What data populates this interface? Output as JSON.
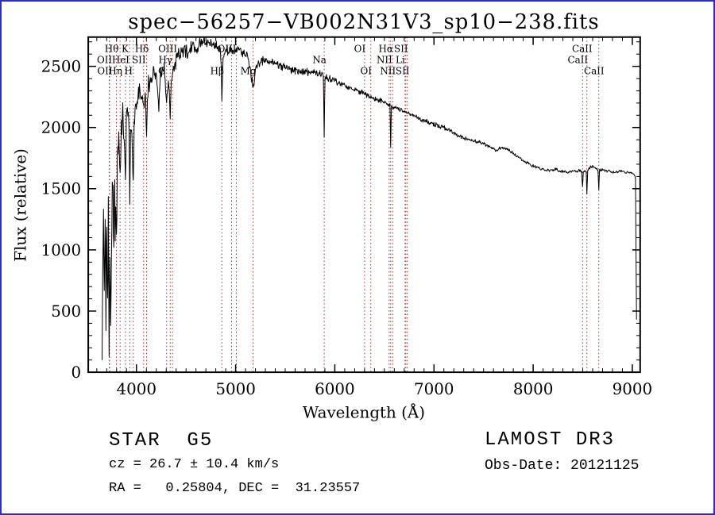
{
  "page": {
    "border_color": "#2b2bd5",
    "background_color": "#ffffff"
  },
  "chart_data": {
    "type": "line",
    "title": "spec−56257−VB002N31V3_sp10−238.fits",
    "xlabel": "Wavelength (Å)",
    "ylabel": "Flux (relative)",
    "xlim": [
      3514,
      9079
    ],
    "ylim": [
      0,
      2739
    ],
    "xticks": [
      4000,
      5000,
      6000,
      7000,
      8000,
      9000
    ],
    "yticks": [
      0,
      500,
      1000,
      1500,
      2000,
      2500
    ],
    "x_minor_step": 100,
    "y_minor_step": 100,
    "grid": false,
    "legend": "none",
    "line_color": "#000000",
    "frame_color": "#000000",
    "spectral_line_color": "#a03030",
    "noise_seed": 20121125,
    "label_rows_y": {
      "1": 64,
      "2": 78,
      "3": 92
    },
    "spectral_lines": [
      {
        "wl": 3726,
        "label": "OII",
        "row": 2
      },
      {
        "wl": 3729,
        "label": "OII",
        "row": 3
      },
      {
        "wl": 3798,
        "label": "Hθ",
        "row": 1
      },
      {
        "wl": 3835,
        "label": "Hη",
        "row": 3
      },
      {
        "wl": 3889,
        "label": "HeI",
        "row": 2
      },
      {
        "wl": 3933,
        "label": "K",
        "row": 1
      },
      {
        "wl": 3968,
        "label": "H",
        "row": 3
      },
      {
        "wl": 4072,
        "label": "SII",
        "row": 2
      },
      {
        "wl": 4102,
        "label": "Hδ",
        "row": 1
      },
      {
        "wl": 4304,
        "label": "G",
        "row": 3
      },
      {
        "wl": 4340,
        "label": "Hγ",
        "row": 2
      },
      {
        "wl": 4363,
        "label": "OIII",
        "row": 1
      },
      {
        "wl": 4861,
        "label": "Hβ",
        "row": 3
      },
      {
        "wl": 4959,
        "label": "OIII",
        "row": 1
      },
      {
        "wl": 5007,
        "label": "",
        "row": 1
      },
      {
        "wl": 5175,
        "label": "Mg",
        "row": 3
      },
      {
        "wl": 5893,
        "label": "Na",
        "row": 2
      },
      {
        "wl": 6300,
        "label": "OI",
        "row": 1
      },
      {
        "wl": 6363,
        "label": "OI",
        "row": 3
      },
      {
        "wl": 6548,
        "label": "NII",
        "row": 2
      },
      {
        "wl": 6563,
        "label": "Hα",
        "row": 1
      },
      {
        "wl": 6583,
        "label": "NII",
        "row": 3
      },
      {
        "wl": 6708,
        "label": "Li",
        "row": 2
      },
      {
        "wl": 6716,
        "label": "SII",
        "row": 1
      },
      {
        "wl": 6731,
        "label": "SII",
        "row": 3
      },
      {
        "wl": 8498,
        "label": "CaII",
        "row": 2
      },
      {
        "wl": 8542,
        "label": "CaII",
        "row": 1
      },
      {
        "wl": 8662,
        "label": "CaII",
        "row": 3
      }
    ],
    "spectrum_points": [
      [
        3653,
        100,
        80
      ],
      [
        3660,
        950,
        280
      ],
      [
        3668,
        1300,
        260
      ],
      [
        3676,
        520,
        240
      ],
      [
        3684,
        1150,
        270
      ],
      [
        3692,
        620,
        260
      ],
      [
        3700,
        1350,
        280
      ],
      [
        3708,
        560,
        240
      ],
      [
        3716,
        1250,
        270
      ],
      [
        3724,
        460,
        220
      ],
      [
        3732,
        1050,
        270
      ],
      [
        3740,
        400,
        180
      ],
      [
        3748,
        1150,
        260
      ],
      [
        3756,
        1400,
        250
      ],
      [
        3764,
        1550,
        240
      ],
      [
        3772,
        950,
        240
      ],
      [
        3781,
        1650,
        220
      ],
      [
        3790,
        1320,
        220
      ],
      [
        3798,
        1120,
        200
      ],
      [
        3807,
        1750,
        190
      ],
      [
        3816,
        1950,
        175
      ],
      [
        3826,
        1820,
        170
      ],
      [
        3835,
        1520,
        180
      ],
      [
        3844,
        1950,
        160
      ],
      [
        3853,
        2050,
        155
      ],
      [
        3862,
        2100,
        150
      ],
      [
        3871,
        1960,
        150
      ],
      [
        3880,
        1860,
        150
      ],
      [
        3889,
        1620,
        150
      ],
      [
        3898,
        2050,
        135
      ],
      [
        3908,
        2100,
        130
      ],
      [
        3918,
        2150,
        125
      ],
      [
        3926,
        2010,
        130
      ],
      [
        3933,
        1360,
        140
      ],
      [
        3941,
        1860,
        130
      ],
      [
        3950,
        1950,
        125
      ],
      [
        3959,
        1810,
        130
      ],
      [
        3968,
        1460,
        140
      ],
      [
        3977,
        1950,
        120
      ],
      [
        3986,
        2100,
        118
      ],
      [
        4000,
        2200,
        115
      ],
      [
        4015,
        2250,
        112
      ],
      [
        4030,
        2300,
        110
      ],
      [
        4045,
        2280,
        108
      ],
      [
        4060,
        2250,
        106
      ],
      [
        4072,
        2160,
        105
      ],
      [
        4088,
        2300,
        102
      ],
      [
        4102,
        1910,
        110
      ],
      [
        4116,
        2320,
        100
      ],
      [
        4135,
        2380,
        96
      ],
      [
        4155,
        2420,
        92
      ],
      [
        4175,
        2450,
        90
      ],
      [
        4200,
        2420,
        90
      ],
      [
        4226,
        2190,
        95
      ],
      [
        4245,
        2430,
        88
      ],
      [
        4265,
        2480,
        86
      ],
      [
        4285,
        2500,
        85
      ],
      [
        4304,
        2230,
        90
      ],
      [
        4322,
        2380,
        86
      ],
      [
        4340,
        2130,
        90
      ],
      [
        4356,
        2400,
        85
      ],
      [
        4375,
        2520,
        82
      ],
      [
        4400,
        2560,
        80
      ],
      [
        4430,
        2590,
        78
      ],
      [
        4460,
        2610,
        75
      ],
      [
        4490,
        2640,
        73
      ],
      [
        4520,
        2610,
        72
      ],
      [
        4550,
        2650,
        70
      ],
      [
        4580,
        2670,
        68
      ],
      [
        4610,
        2650,
        67
      ],
      [
        4640,
        2690,
        65
      ],
      [
        4670,
        2680,
        64
      ],
      [
        4700,
        2700,
        62
      ],
      [
        4730,
        2690,
        61
      ],
      [
        4760,
        2680,
        60
      ],
      [
        4790,
        2665,
        59
      ],
      [
        4820,
        2655,
        58
      ],
      [
        4845,
        2640,
        58
      ],
      [
        4855,
        2500,
        70
      ],
      [
        4861,
        2270,
        80
      ],
      [
        4868,
        2480,
        68
      ],
      [
        4880,
        2600,
        58
      ],
      [
        4910,
        2630,
        56
      ],
      [
        4940,
        2640,
        54
      ],
      [
        4970,
        2630,
        53
      ],
      [
        5000,
        2625,
        52
      ],
      [
        5030,
        2640,
        51
      ],
      [
        5060,
        2620,
        50
      ],
      [
        5090,
        2600,
        49
      ],
      [
        5120,
        2570,
        48
      ],
      [
        5150,
        2480,
        50
      ],
      [
        5167,
        2390,
        52
      ],
      [
        5175,
        2310,
        55
      ],
      [
        5185,
        2350,
        52
      ],
      [
        5200,
        2470,
        48
      ],
      [
        5230,
        2520,
        46
      ],
      [
        5260,
        2540,
        45
      ],
      [
        5290,
        2550,
        44
      ],
      [
        5320,
        2545,
        43
      ],
      [
        5350,
        2535,
        43
      ],
      [
        5380,
        2525,
        42
      ],
      [
        5410,
        2515,
        41
      ],
      [
        5440,
        2510,
        41
      ],
      [
        5470,
        2500,
        40
      ],
      [
        5500,
        2490,
        40
      ],
      [
        5530,
        2480,
        39
      ],
      [
        5560,
        2470,
        39
      ],
      [
        5590,
        2465,
        38
      ],
      [
        5620,
        2460,
        38
      ],
      [
        5650,
        2455,
        37
      ],
      [
        5680,
        2450,
        37
      ],
      [
        5710,
        2450,
        36
      ],
      [
        5740,
        2450,
        36
      ],
      [
        5770,
        2450,
        35
      ],
      [
        5800,
        2450,
        35
      ],
      [
        5830,
        2445,
        34
      ],
      [
        5860,
        2435,
        34
      ],
      [
        5884,
        2425,
        34
      ],
      [
        5893,
        1960,
        45
      ],
      [
        5902,
        2415,
        34
      ],
      [
        5930,
        2405,
        33
      ],
      [
        5960,
        2395,
        33
      ],
      [
        5990,
        2385,
        32
      ],
      [
        6020,
        2370,
        32
      ],
      [
        6050,
        2360,
        31
      ],
      [
        6080,
        2350,
        31
      ],
      [
        6110,
        2340,
        30
      ],
      [
        6140,
        2330,
        30
      ],
      [
        6170,
        2320,
        30
      ],
      [
        6200,
        2310,
        29
      ],
      [
        6230,
        2300,
        29
      ],
      [
        6260,
        2290,
        29
      ],
      [
        6290,
        2275,
        28
      ],
      [
        6320,
        2265,
        28
      ],
      [
        6350,
        2255,
        28
      ],
      [
        6380,
        2245,
        27
      ],
      [
        6410,
        2235,
        27
      ],
      [
        6440,
        2225,
        27
      ],
      [
        6470,
        2215,
        26
      ],
      [
        6500,
        2205,
        26
      ],
      [
        6530,
        2195,
        26
      ],
      [
        6556,
        2185,
        26
      ],
      [
        6563,
        1860,
        35
      ],
      [
        6571,
        2175,
        26
      ],
      [
        6600,
        2165,
        25
      ],
      [
        6630,
        2155,
        25
      ],
      [
        6660,
        2145,
        25
      ],
      [
        6690,
        2135,
        24
      ],
      [
        6720,
        2125,
        24
      ],
      [
        6750,
        2115,
        24
      ],
      [
        6780,
        2105,
        23
      ],
      [
        6810,
        2090,
        23
      ],
      [
        6840,
        2078,
        23
      ],
      [
        6870,
        2068,
        22
      ],
      [
        6900,
        2058,
        22
      ],
      [
        6930,
        2048,
        22
      ],
      [
        6960,
        2038,
        22
      ],
      [
        6990,
        2028,
        21
      ],
      [
        7020,
        2018,
        21
      ],
      [
        7050,
        2010,
        21
      ],
      [
        7080,
        2002,
        21
      ],
      [
        7110,
        1995,
        20
      ],
      [
        7140,
        1985,
        20
      ],
      [
        7170,
        1970,
        20
      ],
      [
        7200,
        1955,
        20
      ],
      [
        7230,
        1940,
        20
      ],
      [
        7260,
        1928,
        19
      ],
      [
        7290,
        1916,
        19
      ],
      [
        7320,
        1906,
        19
      ],
      [
        7350,
        1900,
        19
      ],
      [
        7380,
        1895,
        19
      ],
      [
        7410,
        1890,
        18
      ],
      [
        7440,
        1885,
        18
      ],
      [
        7470,
        1878,
        18
      ],
      [
        7500,
        1870,
        18
      ],
      [
        7530,
        1858,
        18
      ],
      [
        7560,
        1845,
        18
      ],
      [
        7590,
        1826,
        18
      ],
      [
        7620,
        1815,
        18
      ],
      [
        7650,
        1825,
        17
      ],
      [
        7680,
        1835,
        17
      ],
      [
        7710,
        1840,
        17
      ],
      [
        7740,
        1825,
        17
      ],
      [
        7770,
        1808,
        17
      ],
      [
        7800,
        1790,
        17
      ],
      [
        7830,
        1770,
        17
      ],
      [
        7860,
        1752,
        17
      ],
      [
        7890,
        1735,
        16
      ],
      [
        7920,
        1720,
        16
      ],
      [
        7950,
        1708,
        16
      ],
      [
        7980,
        1695,
        16
      ],
      [
        8010,
        1685,
        16
      ],
      [
        8040,
        1672,
        16
      ],
      [
        8070,
        1662,
        16
      ],
      [
        8100,
        1658,
        16
      ],
      [
        8130,
        1652,
        15
      ],
      [
        8160,
        1648,
        15
      ],
      [
        8190,
        1655,
        15
      ],
      [
        8220,
        1658,
        15
      ],
      [
        8250,
        1650,
        15
      ],
      [
        8280,
        1642,
        15
      ],
      [
        8310,
        1636,
        15
      ],
      [
        8340,
        1630,
        15
      ],
      [
        8370,
        1635,
        15
      ],
      [
        8400,
        1640,
        15
      ],
      [
        8430,
        1645,
        14
      ],
      [
        8460,
        1648,
        14
      ],
      [
        8490,
        1640,
        14
      ],
      [
        8498,
        1505,
        18
      ],
      [
        8506,
        1640,
        14
      ],
      [
        8520,
        1645,
        14
      ],
      [
        8535,
        1642,
        14
      ],
      [
        8542,
        1458,
        18
      ],
      [
        8550,
        1648,
        14
      ],
      [
        8570,
        1672,
        14
      ],
      [
        8590,
        1685,
        14
      ],
      [
        8610,
        1678,
        14
      ],
      [
        8630,
        1668,
        14
      ],
      [
        8654,
        1656,
        14
      ],
      [
        8662,
        1482,
        18
      ],
      [
        8670,
        1652,
        14
      ],
      [
        8700,
        1655,
        13
      ],
      [
        8730,
        1650,
        13
      ],
      [
        8760,
        1645,
        13
      ],
      [
        8790,
        1638,
        13
      ],
      [
        8820,
        1632,
        13
      ],
      [
        8850,
        1640,
        13
      ],
      [
        8880,
        1645,
        13
      ],
      [
        8910,
        1640,
        13
      ],
      [
        8940,
        1635,
        13
      ],
      [
        8970,
        1630,
        13
      ],
      [
        9000,
        1626,
        13
      ],
      [
        9020,
        1618,
        12
      ],
      [
        9032,
        1585,
        12
      ],
      [
        9042,
        430,
        20
      ]
    ]
  },
  "footer": {
    "left": {
      "class_line": "STAR  G5",
      "cz_line": "cz = 26.7 ± 10.4 km/s",
      "radec_line": "RA =   0.25804, DEC =  31.23557"
    },
    "right": {
      "survey": "LAMOST DR3",
      "obs_date": "Obs-Date: 20121125"
    }
  }
}
